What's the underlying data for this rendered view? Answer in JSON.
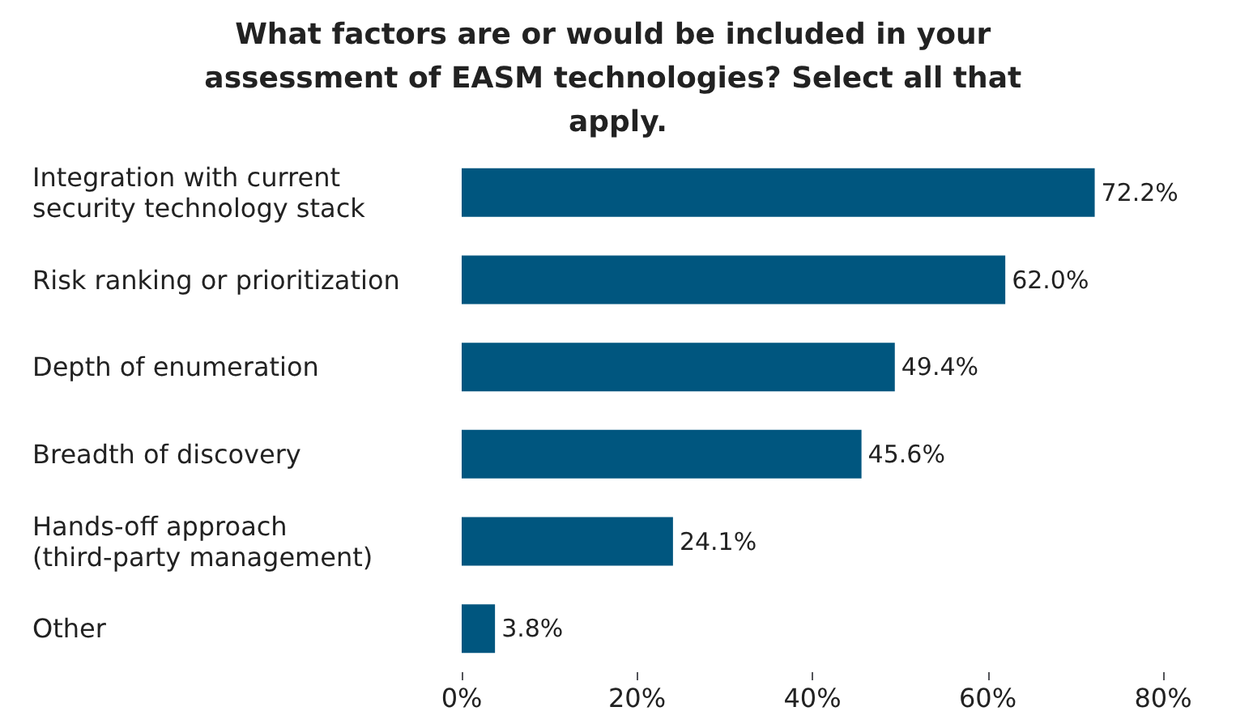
{
  "chart_data": {
    "type": "bar",
    "orientation": "horizontal",
    "title": "What factors are or would be included in your assessment of EASM technologies? Select all that apply.",
    "categories": [
      "Integration with current security technology stack",
      "Risk ranking or prioritization",
      "Depth of enumeration",
      "Breadth of discovery",
      "Hands-off approach (third-party management)",
      "Other"
    ],
    "values": [
      72.2,
      62.0,
      49.4,
      45.6,
      24.1,
      3.8
    ],
    "value_labels": [
      "72.2%",
      "62.0%",
      "49.4%",
      "45.6%",
      "24.1%",
      "3.8%"
    ],
    "color": "#00567f",
    "xlim": [
      0,
      80
    ],
    "xticks": [
      {
        "value": 0,
        "label": "0%"
      },
      {
        "value": 20,
        "label": "20%"
      },
      {
        "value": 40,
        "label": "40%"
      },
      {
        "value": 60,
        "label": "60%"
      },
      {
        "value": 80,
        "label": "80%"
      }
    ],
    "grid": false
  }
}
